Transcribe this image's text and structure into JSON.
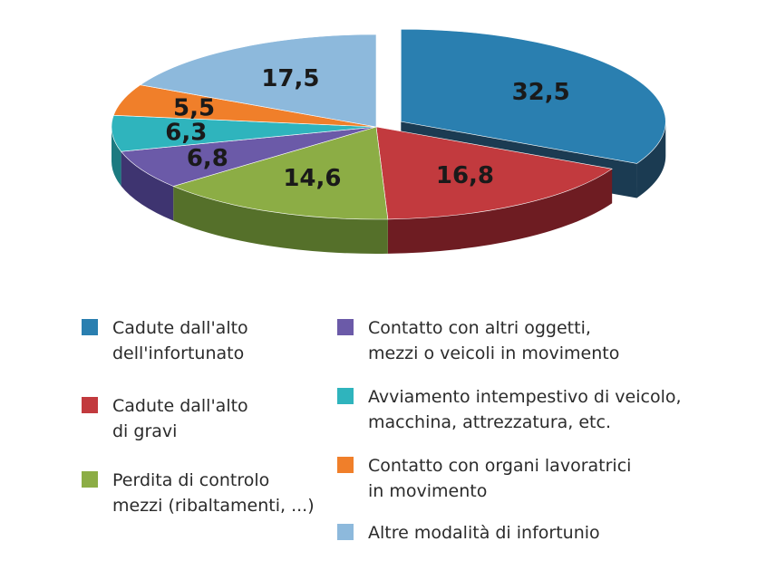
{
  "chart_data": {
    "type": "pie",
    "title": "",
    "slices": [
      {
        "label": "Cadute dall'alto\ndell'infortunato",
        "value": 32.5,
        "value_label": "32,5",
        "color": "#2a7fb0",
        "side_color": "#1b3b52",
        "exploded": true
      },
      {
        "label": "Cadute dall'alto\ndi gravi",
        "value": 16.8,
        "value_label": "16,8",
        "color": "#c23a3e",
        "side_color": "#6e1c22"
      },
      {
        "label": "Perdita di controlo\nmezzi (ribaltamenti, ...)",
        "value": 14.6,
        "value_label": "14,6",
        "color": "#8cad45",
        "side_color": "#55702a"
      },
      {
        "label": "Contatto con altri oggetti,\nmezzi o veicoli in movimento",
        "value": 6.8,
        "value_label": "6,8",
        "color": "#6b5aa8",
        "side_color": "#3e3470"
      },
      {
        "label": "Avviamento intempestivo di veicolo,\nmacchina, attrezzatura, etc.",
        "value": 6.3,
        "value_label": "6,3",
        "color": "#2fb4bd",
        "side_color": "#1c7a80"
      },
      {
        "label": "Contatto con organi lavoratrici\nin movimento",
        "value": 5.5,
        "value_label": "5,5",
        "color": "#f07f2a",
        "side_color": "#a8531a"
      },
      {
        "label": "Altre modalità di infortunio",
        "value": 17.5,
        "value_label": "17,5",
        "color": "#8db9dc",
        "side_color": "#5a86a6"
      }
    ],
    "legend_position": "bottom"
  }
}
